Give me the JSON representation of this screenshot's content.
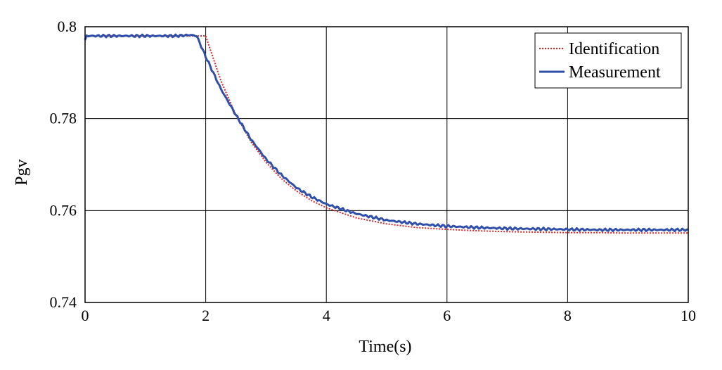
{
  "chart_data": {
    "type": "line",
    "title": "",
    "xlabel": "Time(s)",
    "ylabel": "Pgv",
    "xlim": [
      0,
      10
    ],
    "ylim": [
      0.74,
      0.8
    ],
    "xticks": [
      0,
      2,
      4,
      6,
      8,
      10
    ],
    "xtick_labels": [
      "0",
      "2",
      "4",
      "6",
      "8",
      "10"
    ],
    "yticks": [
      0.74,
      0.76,
      0.78,
      0.8
    ],
    "ytick_labels": [
      "0.74",
      "0.76",
      "0.78",
      "0.8"
    ],
    "grid": true,
    "legend_position": "top-right",
    "series": [
      {
        "name": "Identification",
        "color": "#d62728",
        "style": "dotted",
        "x": [
          0,
          0.5,
          1.0,
          1.5,
          2.0,
          2.25,
          2.5,
          2.75,
          3.0,
          3.25,
          3.5,
          3.75,
          4.0,
          4.5,
          5.0,
          5.5,
          6.0,
          6.5,
          7.0,
          7.5,
          8.0,
          8.5,
          9.0,
          9.5,
          10.0
        ],
        "y": [
          0.798,
          0.798,
          0.798,
          0.798,
          0.798,
          0.7883,
          0.7808,
          0.775,
          0.7705,
          0.767,
          0.7643,
          0.7622,
          0.7606,
          0.7584,
          0.7571,
          0.7563,
          0.7559,
          0.7556,
          0.7554,
          0.7553,
          0.7552,
          0.7552,
          0.7551,
          0.7551,
          0.7551
        ]
      },
      {
        "name": "Measurement",
        "color": "#2f4fa8",
        "style": "solid",
        "x": [
          0,
          0.02,
          0.5,
          1.0,
          1.5,
          1.75,
          1.85,
          2.0,
          2.25,
          2.5,
          2.75,
          3.0,
          3.25,
          3.5,
          3.75,
          4.0,
          4.5,
          5.0,
          5.5,
          6.0,
          6.5,
          7.0,
          7.5,
          8.0,
          8.5,
          9.0,
          9.5,
          10.0
        ],
        "y": [
          0.797,
          0.798,
          0.798,
          0.798,
          0.798,
          0.7982,
          0.798,
          0.7935,
          0.7865,
          0.7808,
          0.7755,
          0.7712,
          0.7678,
          0.765,
          0.763,
          0.7614,
          0.7593,
          0.7579,
          0.7571,
          0.7566,
          0.7563,
          0.7561,
          0.756,
          0.7559,
          0.7558,
          0.7558,
          0.7558,
          0.7558
        ]
      }
    ]
  }
}
